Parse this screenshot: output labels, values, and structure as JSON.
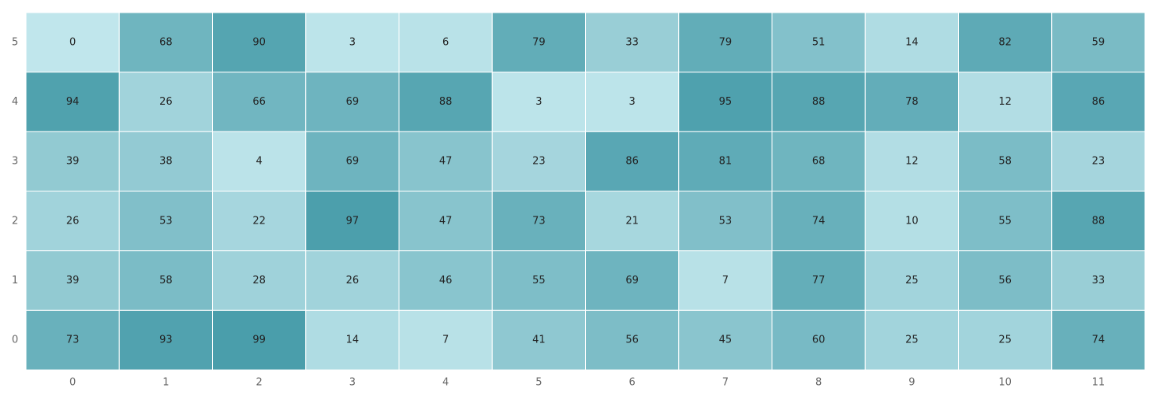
{
  "chart_data": {
    "type": "heatmap",
    "title": "",
    "xlabel": "",
    "ylabel": "",
    "x_categories": [
      "0",
      "1",
      "2",
      "3",
      "4",
      "5",
      "6",
      "7",
      "8",
      "9",
      "10",
      "11"
    ],
    "y_categories": [
      "0",
      "1",
      "2",
      "3",
      "4",
      "5"
    ],
    "value_range": [
      0,
      99
    ],
    "color_low": "#c0e6ec",
    "color_high": "#4a9eab",
    "cell_border_color": "#ffffff",
    "rows": [
      {
        "y": "5",
        "values": [
          0,
          68,
          90,
          3,
          6,
          79,
          33,
          79,
          51,
          14,
          82,
          59
        ]
      },
      {
        "y": "4",
        "values": [
          94,
          26,
          66,
          69,
          88,
          3,
          3,
          95,
          88,
          78,
          12,
          86
        ]
      },
      {
        "y": "3",
        "values": [
          39,
          38,
          4,
          69,
          47,
          23,
          86,
          81,
          68,
          12,
          58,
          23
        ]
      },
      {
        "y": "2",
        "values": [
          26,
          53,
          22,
          97,
          47,
          73,
          21,
          53,
          74,
          10,
          55,
          88
        ]
      },
      {
        "y": "1",
        "values": [
          39,
          58,
          28,
          26,
          46,
          55,
          69,
          7,
          77,
          25,
          56,
          33
        ]
      },
      {
        "y": "0",
        "values": [
          73,
          93,
          99,
          14,
          7,
          41,
          56,
          45,
          60,
          25,
          25,
          74
        ]
      }
    ]
  }
}
